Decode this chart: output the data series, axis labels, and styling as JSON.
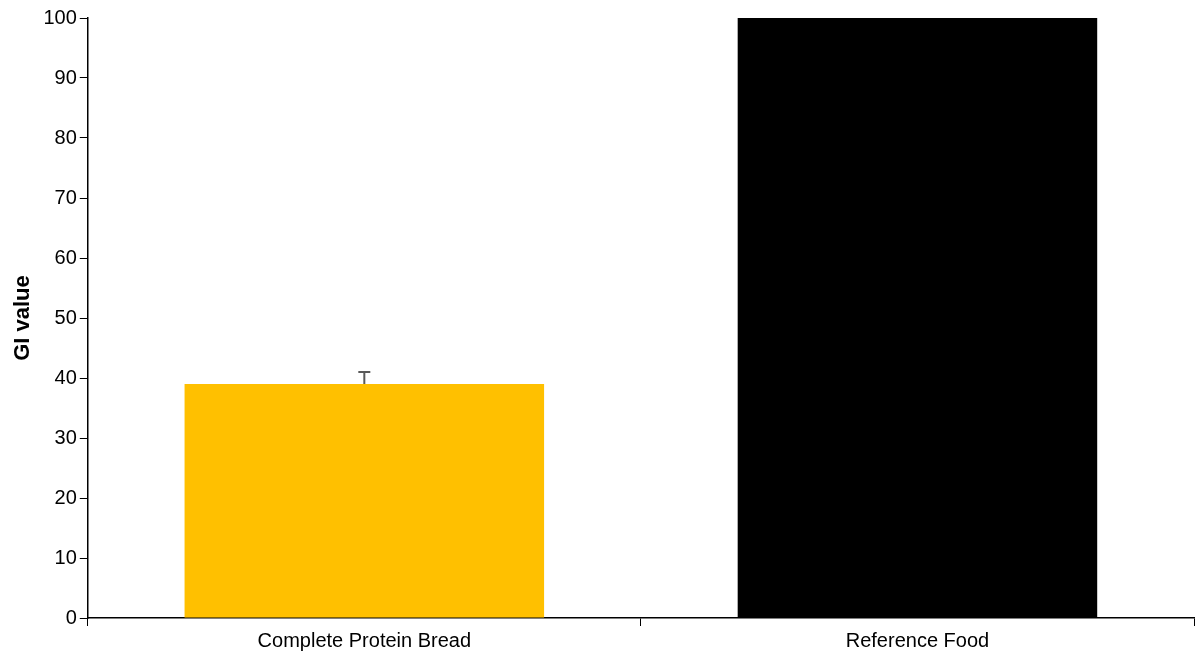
{
  "chart_data": {
    "type": "bar",
    "ylabel": "GI value",
    "categories": [
      "Complete Protein Bread",
      "Reference Food"
    ],
    "values": [
      39,
      100
    ],
    "colors": [
      "#ffc000",
      "#000000"
    ],
    "errors": [
      2,
      null
    ],
    "ylim": [
      0,
      100
    ],
    "yticks": [
      0,
      10,
      20,
      30,
      40,
      50,
      60,
      70,
      80,
      90,
      100
    ],
    "grid": false,
    "legend": false
  }
}
